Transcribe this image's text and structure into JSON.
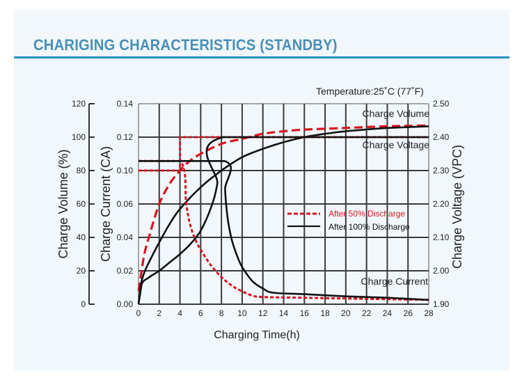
{
  "header": {
    "title": "CHARIGING CHARACTERISTICS (STANDBY)"
  },
  "colors": {
    "title": "#4a8fb8",
    "rule": "#2b90c8",
    "panel": "#f1f7fa",
    "red": "#d7141f",
    "black": "#111111",
    "grid": "#3a3a3a"
  },
  "chart_data": {
    "type": "line",
    "title": "CHARIGING CHARACTERISTICS (STANDBY)",
    "temperature_note": "Temperature:25˚C (77˚F)",
    "xlabel": "Charging Time(h)",
    "xlim": [
      0,
      28
    ],
    "x_ticks": [
      "0",
      "2",
      "4",
      "6",
      "8",
      "10",
      "12",
      "14",
      "16",
      "18",
      "20",
      "22",
      "24",
      "26",
      "28"
    ],
    "axes": {
      "volume": {
        "label": "Charge Volume (%)",
        "ylim": [
          0,
          120
        ],
        "ticks": [
          "120",
          "100",
          "80",
          "60",
          "40",
          "20",
          "0"
        ]
      },
      "current": {
        "label": "Charge Current (CA)",
        "ylim": [
          0,
          0.14
        ],
        "ticks": [
          "0.14",
          "0.12",
          "0.10",
          "0.06",
          "0.04",
          "0.02",
          "0.00"
        ]
      },
      "voltage": {
        "label": "Charge Voltage (VPC)",
        "ylim": [
          1.9,
          2.5
        ],
        "ticks": [
          "2.50",
          "2.40",
          "2.30",
          "2.20",
          "2.10",
          "2.00",
          "1.90"
        ]
      }
    },
    "grid": true,
    "annotations": {
      "charge_volume": "Charge Volume",
      "charge_voltage": "Charge Voltage",
      "charge_current": "Charge Current"
    },
    "legend": {
      "placement": "center-right",
      "entries": [
        {
          "name": "After 50% Discharge",
          "style": "dashed",
          "color": "#d7141f"
        },
        {
          "name": "After 100% Discharge",
          "style": "solid",
          "color": "#111111"
        }
      ]
    },
    "series": [
      {
        "name": "Charge Volume - After 50% Discharge",
        "axis": "volume",
        "style": "dashed",
        "color": "#d7141f",
        "x": [
          0,
          0.5,
          1,
          2,
          3,
          4,
          5,
          6,
          8,
          10,
          12,
          14,
          16,
          20,
          24,
          28
        ],
        "y": [
          8,
          28,
          40,
          60,
          72,
          80,
          86,
          90,
          96,
          99,
          102,
          103.5,
          104.5,
          105.5,
          106.5,
          107
        ]
      },
      {
        "name": "Charge Volume - After 100% Discharge",
        "axis": "volume",
        "style": "solid",
        "color": "#111111",
        "x": [
          0,
          0.2,
          0.5,
          1,
          2,
          3,
          4,
          6,
          8,
          10,
          12,
          14,
          16,
          18,
          20,
          24,
          28
        ],
        "y": [
          0,
          11,
          18,
          25,
          37,
          48,
          57,
          70,
          80,
          88,
          93,
          97,
          100,
          102,
          103.5,
          105.5,
          106.5
        ]
      },
      {
        "name": "Charge Voltage - After 50% Discharge",
        "axis": "voltage",
        "style": "dotted",
        "color": "#d7141f",
        "x": [
          0,
          4,
          4,
          28
        ],
        "y": [
          2.3,
          2.3,
          2.4,
          2.4
        ]
      },
      {
        "name": "Charge Voltage - After 100% Discharge",
        "axis": "voltage",
        "style": "solid",
        "color": "#111111",
        "x": [
          0,
          0.3,
          1,
          2,
          3,
          4,
          5,
          6,
          7,
          7.6,
          8.2,
          28
        ],
        "y": [
          1.9,
          1.96,
          1.98,
          2.0,
          2.025,
          2.05,
          2.08,
          2.12,
          2.19,
          2.26,
          2.4,
          2.4
        ]
      },
      {
        "name": "Charge Current - After 50% Discharge",
        "axis": "current",
        "style": "dotted",
        "color": "#d7141f",
        "x": [
          0,
          4,
          4.6,
          5,
          5.5,
          6,
          7,
          8,
          9,
          10,
          11,
          12,
          16,
          20,
          28
        ],
        "y": [
          0.1,
          0.1,
          0.07,
          0.055,
          0.045,
          0.038,
          0.027,
          0.019,
          0.013,
          0.009,
          0.006,
          0.005,
          0.0045,
          0.004,
          0.003
        ]
      },
      {
        "name": "Charge Current - After 100% Discharge",
        "axis": "current",
        "style": "solid",
        "color": "#111111",
        "x": [
          0,
          8.3,
          8.35,
          8.6,
          9,
          9.5,
          10,
          11,
          12,
          13,
          16,
          20,
          24,
          28
        ],
        "y": [
          0.1,
          0.1,
          0.08,
          0.06,
          0.045,
          0.034,
          0.026,
          0.016,
          0.011,
          0.008,
          0.007,
          0.0055,
          0.0045,
          0.003
        ]
      }
    ]
  }
}
